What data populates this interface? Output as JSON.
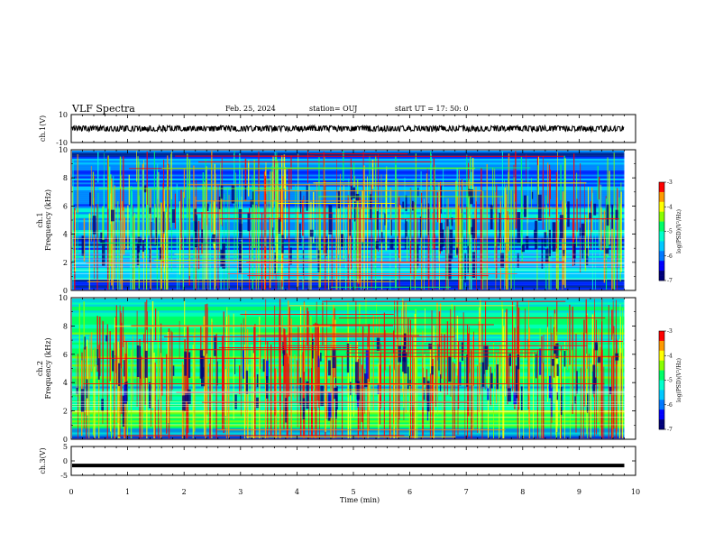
{
  "header": {
    "title": "VLF Spectra",
    "date": "Feb. 25, 2024",
    "station": "station= OUJ",
    "start": "start  UT =   17: 50: 0"
  },
  "chart_data": [
    {
      "type": "line",
      "panel": "ch1-waveform",
      "ylabel": "ch.1(V)",
      "ylim": [
        -10,
        10
      ],
      "yticks": [
        "10",
        "-10"
      ],
      "xlim": [
        0,
        10
      ],
      "series": [
        {
          "x": [
            0,
            9.8
          ],
          "y": [
            0,
            0
          ],
          "amplitude": 1.5
        }
      ]
    },
    {
      "type": "heatmap",
      "panel": "ch1-spectrogram",
      "ylabel": "ch.1\nFrequency (kHz)",
      "yticks": [
        "0",
        "2",
        "4",
        "6",
        "8",
        "10"
      ],
      "ylim": [
        0,
        10
      ],
      "xlim": [
        0,
        10
      ],
      "data_xmax": 9.8,
      "colorbar": {
        "label": "log(PSD)(V²/Hz)",
        "ticks": [
          "-3",
          "-4",
          "-5",
          "-6",
          "-7"
        ],
        "range": [
          -7,
          -3
        ]
      },
      "base_level": -5.7
    },
    {
      "type": "heatmap",
      "panel": "ch2-spectrogram",
      "ylabel": "ch.2\nFrequency (kHz)",
      "yticks": [
        "0",
        "2",
        "4",
        "6",
        "8",
        "10"
      ],
      "ylim": [
        0,
        10
      ],
      "xlim": [
        0,
        10
      ],
      "data_xmax": 9.8,
      "colorbar": {
        "label": "log(PSD)(V²/Hz)",
        "ticks": [
          "-3",
          "-4",
          "-5",
          "-6",
          "-7"
        ],
        "range": [
          -7,
          -3
        ]
      },
      "base_level": -4.9
    },
    {
      "type": "line",
      "panel": "ch3-waveform",
      "ylabel": "ch.3(V)",
      "ylim": [
        -5,
        5
      ],
      "yticks": [
        "5",
        "0",
        "-5"
      ],
      "xlim": [
        0,
        10
      ],
      "series": [
        {
          "x": [
            0,
            9.8
          ],
          "y": [
            -1.6,
            -1.6
          ],
          "amplitude": 0.2
        }
      ]
    }
  ],
  "xaxis": {
    "label": "Time (min)",
    "ticks": [
      "0",
      "1",
      "2",
      "3",
      "4",
      "5",
      "6",
      "7",
      "8",
      "9",
      "10"
    ]
  },
  "colormap": [
    "#00007a",
    "#0000ff",
    "#0078ff",
    "#00c8ff",
    "#00ffcc",
    "#00ff66",
    "#88ff00",
    "#ffff00",
    "#ff9900",
    "#ff0000",
    "#ffffff"
  ]
}
